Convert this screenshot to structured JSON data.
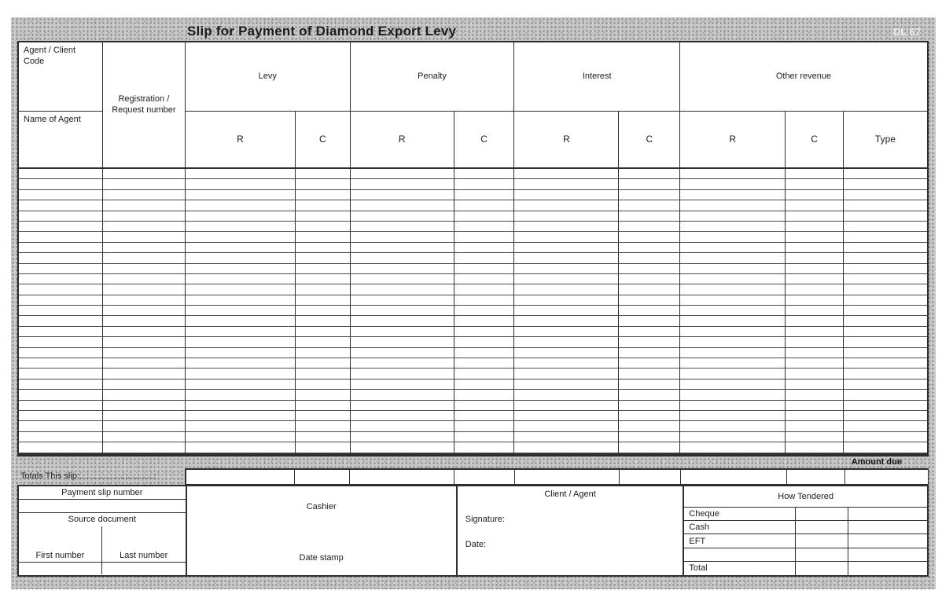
{
  "form": {
    "title": "Slip for Payment of Diamond Export Levy",
    "form_code": "DL 67",
    "header": {
      "agent_client_code": "Agent / Client Code",
      "name_of_agent": "Name of Agent",
      "registration": "Registration / Request number",
      "groups": {
        "levy": {
          "label": "Levy",
          "r": "R",
          "c": "C"
        },
        "penalty": {
          "label": "Penalty",
          "r": "R",
          "c": "C"
        },
        "interest": {
          "label": "Interest",
          "r": "R",
          "c": "C"
        },
        "other": {
          "label": "Other revenue",
          "r": "R",
          "c": "C",
          "type": "Type"
        }
      }
    },
    "body": {
      "row_count": 27,
      "column_count": 11
    },
    "totals": {
      "amount_due_label": "Amount due",
      "totals_label": "Totals This slip:...............................:",
      "cell_count": 9
    },
    "footer": {
      "payment_slip_number": "Payment slip number",
      "source_document": "Source document",
      "first_number": "First number",
      "last_number": "Last number",
      "cashier": "Cashier",
      "date_stamp": "Date stamp",
      "client_agent": "Client / Agent",
      "signature": "Signature:",
      "date": "Date:",
      "how_tendered": "How Tendered",
      "tender_rows": [
        "Cheque",
        "Cash",
        "EFT",
        "",
        "Total"
      ]
    }
  }
}
